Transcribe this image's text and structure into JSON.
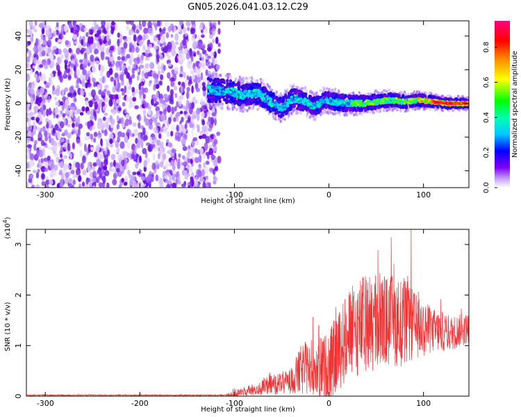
{
  "title": "GN05.2026.041.03.12.C29",
  "colors": {
    "axis": "#000000",
    "snr_line": "#ee3333",
    "background": "#ffffff"
  },
  "chart_data": [
    {
      "type": "heatmap",
      "name": "spectrogram",
      "xlabel": "Height of straight line (km)",
      "ylabel": "Frequency (Hz)",
      "xlim": [
        -320,
        148
      ],
      "ylim": [
        -50,
        49
      ],
      "x_ticks": [
        -300,
        -200,
        -100,
        0,
        100
      ],
      "y_ticks": [
        -40,
        -20,
        0,
        20,
        40
      ],
      "x_tick_labels": [
        "-300",
        "-200",
        "-100",
        "0",
        "100"
      ],
      "y_tick_labels": [
        "-40",
        "-20",
        "0",
        "20",
        "40"
      ],
      "noise_region_x": [
        -320,
        -116
      ],
      "signal_center_freq": [
        {
          "x": -125,
          "f": 8
        },
        {
          "x": -105,
          "f": 7
        },
        {
          "x": -90,
          "f": 5
        },
        {
          "x": -75,
          "f": 6
        },
        {
          "x": -62,
          "f": 1
        },
        {
          "x": -50,
          "f": -3
        },
        {
          "x": -38,
          "f": 3
        },
        {
          "x": -25,
          "f": 1
        },
        {
          "x": -15,
          "f": -2
        },
        {
          "x": -5,
          "f": 2
        },
        {
          "x": 5,
          "f": 1
        },
        {
          "x": 20,
          "f": 0
        },
        {
          "x": 35,
          "f": 0
        },
        {
          "x": 50,
          "f": 1
        },
        {
          "x": 65,
          "f": 2
        },
        {
          "x": 80,
          "f": 1
        },
        {
          "x": 95,
          "f": 2
        },
        {
          "x": 110,
          "f": 1
        },
        {
          "x": 125,
          "f": 0
        },
        {
          "x": 148,
          "f": 0
        }
      ],
      "colorbar": {
        "label": "Normalized spectral amplitude",
        "range": [
          0,
          0.95
        ],
        "ticks": [
          0.0,
          0.2,
          0.4,
          0.6,
          0.8
        ],
        "tick_labels": [
          "0.0",
          "0.2",
          "0.4",
          "0.6",
          "0.8"
        ],
        "colormap": [
          "#ffffff",
          "#b080ff",
          "#7000e0",
          "#0000ff",
          "#00ccff",
          "#00ff80",
          "#40ff00",
          "#ffff00",
          "#ff8000",
          "#ff0000",
          "#ff0080"
        ]
      }
    },
    {
      "type": "line",
      "name": "snr",
      "xlabel": "Height of straight line (km)",
      "ylabel": "SNR (10 * v/v)",
      "y_scale_note": "(x10",
      "y_scale_exp": "4",
      "y_scale_close": ")",
      "xlim": [
        -320,
        148
      ],
      "ylim": [
        0,
        3.3
      ],
      "x_ticks": [
        -300,
        -200,
        -100,
        0,
        100
      ],
      "y_ticks": [
        0,
        1,
        2,
        3
      ],
      "x_tick_labels": [
        "-300",
        "-200",
        "-100",
        "0",
        "100"
      ],
      "y_tick_labels": [
        "0",
        "1",
        "2",
        "3"
      ],
      "envelope": [
        {
          "x": -320,
          "mean": 0.02,
          "spread": 0.01
        },
        {
          "x": -110,
          "mean": 0.02,
          "spread": 0.01
        },
        {
          "x": -100,
          "mean": 0.05,
          "spread": 0.08
        },
        {
          "x": -80,
          "mean": 0.12,
          "spread": 0.12
        },
        {
          "x": -60,
          "mean": 0.22,
          "spread": 0.2
        },
        {
          "x": -40,
          "mean": 0.3,
          "spread": 0.25
        },
        {
          "x": -30,
          "mean": 0.5,
          "spread": 0.5
        },
        {
          "x": -20,
          "mean": 0.6,
          "spread": 0.55
        },
        {
          "x": -10,
          "mean": 0.55,
          "spread": 0.6
        },
        {
          "x": 0,
          "mean": 0.6,
          "spread": 0.7
        },
        {
          "x": 10,
          "mean": 0.9,
          "spread": 0.8
        },
        {
          "x": 20,
          "mean": 1.2,
          "spread": 0.9
        },
        {
          "x": 35,
          "mean": 1.4,
          "spread": 1.0
        },
        {
          "x": 50,
          "mean": 1.45,
          "spread": 1.0
        },
        {
          "x": 65,
          "mean": 1.5,
          "spread": 0.9
        },
        {
          "x": 80,
          "mean": 1.45,
          "spread": 0.9
        },
        {
          "x": 95,
          "mean": 1.35,
          "spread": 0.6
        },
        {
          "x": 110,
          "mean": 1.3,
          "spread": 0.45
        },
        {
          "x": 130,
          "mean": 1.25,
          "spread": 0.35
        },
        {
          "x": 148,
          "mean": 1.35,
          "spread": 0.3
        }
      ],
      "peak": {
        "x": 87,
        "y": 3.3
      }
    }
  ]
}
